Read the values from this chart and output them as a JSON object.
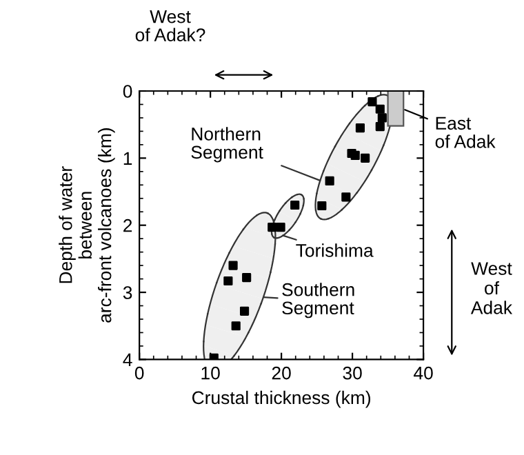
{
  "chart_data": {
    "type": "scatter",
    "xlabel": "Crustal thickness (km)",
    "ylabel": "Depth of water\nbetween\narc-front volcanoes (km)",
    "xlim": [
      0,
      40
    ],
    "ylim": [
      4,
      0
    ],
    "xticks": [
      0,
      10,
      20,
      30,
      40
    ],
    "yticks": [
      0,
      1,
      2,
      3,
      4
    ],
    "marker": "square",
    "grid": false,
    "legend": false,
    "series": [
      {
        "name": "Northern\nSegment",
        "color": "#000000",
        "x": [
          32.8,
          33.9,
          34.2,
          33.9,
          31.1,
          29.9,
          30.4,
          31.8,
          26.8,
          29.1,
          25.7
        ],
        "values": [
          0.16,
          0.27,
          0.4,
          0.53,
          0.55,
          0.93,
          0.96,
          1.0,
          1.34,
          1.58,
          1.71
        ]
      },
      {
        "name": "Torishima",
        "color": "#000000",
        "x": [
          21.9,
          19.9
        ],
        "values": [
          1.7,
          2.03
        ]
      },
      {
        "name": "Southern\nSegment",
        "color": "#000000",
        "x": [
          18.7,
          13.2,
          12.5,
          15.1,
          14.8,
          13.6,
          10.5
        ],
        "values": [
          2.03,
          2.6,
          2.83,
          2.78,
          3.28,
          3.5,
          3.98
        ]
      }
    ],
    "annotations": [
      "West\nof Adak?",
      "East\nof Adak",
      "West\nof\nAdak"
    ]
  }
}
